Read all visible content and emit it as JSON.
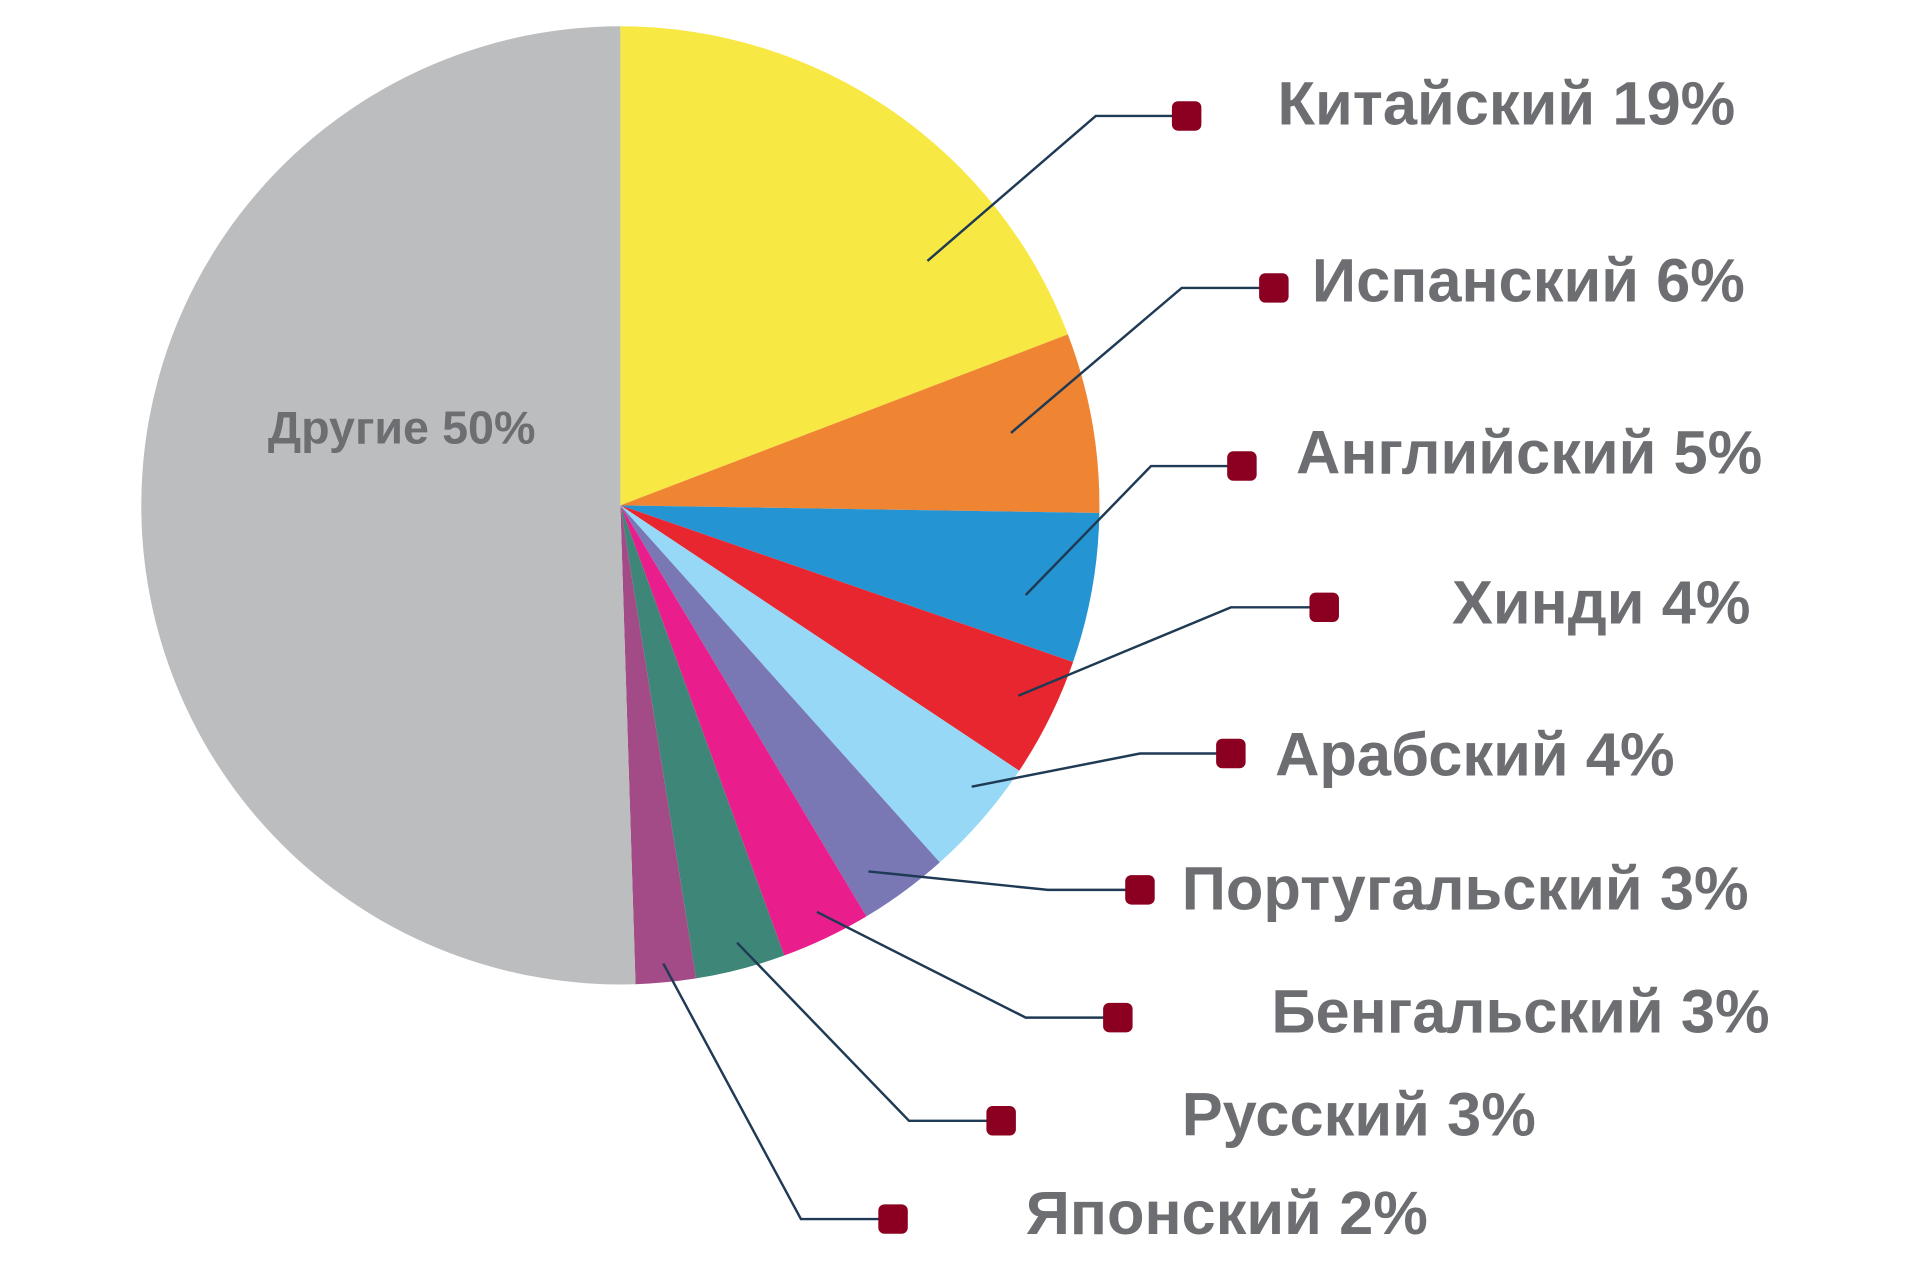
{
  "chart_data": {
    "type": "pie",
    "categories": [
      "Китайский",
      "Испанский",
      "Английский",
      "Хинди",
      "Арабский",
      "Португальский",
      "Бенгальский",
      "Русский",
      "Японский",
      "Другие"
    ],
    "values": [
      19,
      6,
      5,
      4,
      4,
      3,
      3,
      3,
      2,
      50
    ],
    "value_labels": [
      "19%",
      "6%",
      "5%",
      "4%",
      "4%",
      "3%",
      "3%",
      "3%",
      "2%",
      "50%"
    ],
    "colors": [
      "#f7e843",
      "#ef8433",
      "#2594d2",
      "#e8262f",
      "#96d8f6",
      "#7a77b5",
      "#e91e8c",
      "#3e8677",
      "#a34b86",
      "#bcbdbf"
    ]
  }
}
